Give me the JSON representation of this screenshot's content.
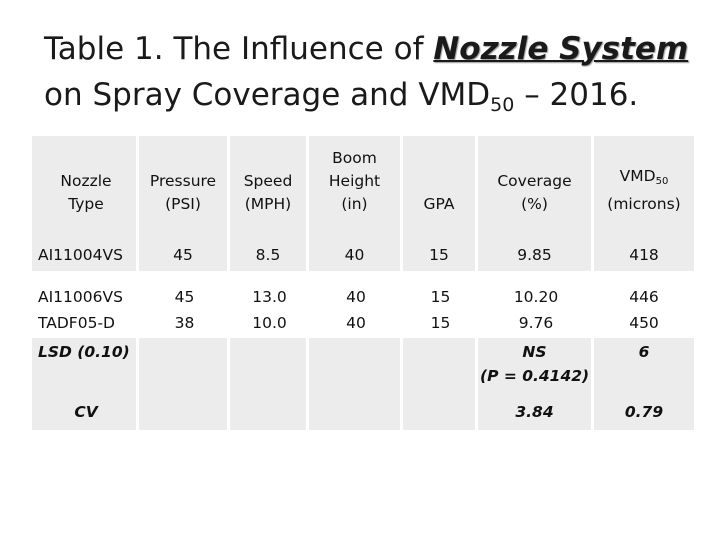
{
  "slide": {
    "title_prefix": "Table 1. The Influence of",
    "title_emphasis": "Nozzle System",
    "title_mid": "on Spray Coverage and VMD",
    "title_sub": "50",
    "title_suffix": "– 2016."
  },
  "table": {
    "headers": {
      "nozzle": [
        "Nozzle",
        "Type"
      ],
      "pressure": [
        "Pressure",
        "(PSI)"
      ],
      "speed": [
        "Speed",
        "(MPH)"
      ],
      "boom": [
        "Boom",
        "Height",
        "(in)"
      ],
      "gpa": "GPA",
      "coverage": [
        "Coverage",
        "(%)"
      ],
      "vmd_main": "VMD",
      "vmd_sub": "50",
      "vmd_unit": "(microns)"
    },
    "rows": [
      {
        "nozzle": "AI11004VS",
        "pressure": "45",
        "speed": "8.5",
        "boom": "40",
        "gpa": "15",
        "coverage": "9.85",
        "vmd": "418"
      },
      {
        "nozzle": "AI11006VS",
        "pressure": "45",
        "speed": "13.0",
        "boom": "40",
        "gpa": "15",
        "coverage": "10.20",
        "vmd": "446"
      },
      {
        "nozzle": "TADF05-D",
        "pressure": "38",
        "speed": "10.0",
        "boom": "40",
        "gpa": "15",
        "coverage": "9.76",
        "vmd": "450"
      }
    ],
    "lsd": {
      "label": "LSD (0.10)",
      "coverage_line1": "NS",
      "coverage_line2": "(P = 0.4142)",
      "vmd": "6"
    },
    "cv": {
      "label": "CV",
      "coverage": "3.84",
      "vmd": "0.79"
    }
  },
  "colors": {
    "row_shade": "#ececec",
    "background": "#ffffff"
  }
}
